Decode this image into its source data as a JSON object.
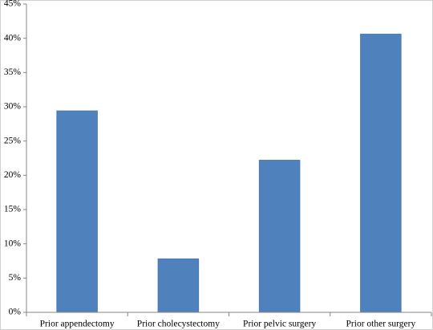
{
  "chart_data": {
    "type": "bar",
    "categories": [
      "Prior appendectomy",
      "Prior cholecystectomy",
      "Prior pelvic surgery",
      "Prior other surgery"
    ],
    "values": [
      29.4,
      7.8,
      22.2,
      40.6
    ],
    "color": "#4f81bd",
    "ylim": [
      0,
      45
    ],
    "yticks": [
      {
        "value": 0,
        "label": "0%"
      },
      {
        "value": 5,
        "label": "5%"
      },
      {
        "value": 10,
        "label": "10%"
      },
      {
        "value": 15,
        "label": "15%"
      },
      {
        "value": 20,
        "label": "20%"
      },
      {
        "value": 25,
        "label": "25%"
      },
      {
        "value": 30,
        "label": "30%"
      },
      {
        "value": 35,
        "label": "35%"
      },
      {
        "value": 40,
        "label": "40%"
      },
      {
        "value": 45,
        "label": "45%"
      }
    ],
    "grid": false
  }
}
